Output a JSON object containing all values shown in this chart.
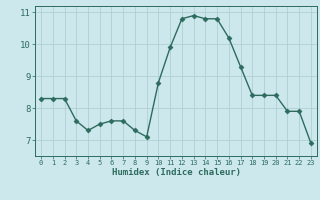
{
  "x": [
    0,
    1,
    2,
    3,
    4,
    5,
    6,
    7,
    8,
    9,
    10,
    11,
    12,
    13,
    14,
    15,
    16,
    17,
    18,
    19,
    20,
    21,
    22,
    23
  ],
  "y": [
    8.3,
    8.3,
    8.3,
    7.6,
    7.3,
    7.5,
    7.6,
    7.6,
    7.3,
    7.1,
    8.8,
    9.9,
    10.8,
    10.9,
    10.8,
    10.8,
    10.2,
    9.3,
    8.4,
    8.4,
    8.4,
    7.9,
    7.9,
    6.9
  ],
  "xlabel": "Humidex (Indice chaleur)",
  "ylim": [
    6.5,
    11.2
  ],
  "xlim": [
    -0.5,
    23.5
  ],
  "yticks": [
    7,
    8,
    9,
    10,
    11
  ],
  "xticks": [
    0,
    1,
    2,
    3,
    4,
    5,
    6,
    7,
    8,
    9,
    10,
    11,
    12,
    13,
    14,
    15,
    16,
    17,
    18,
    19,
    20,
    21,
    22,
    23
  ],
  "line_color": "#2d6b5e",
  "bg_color": "#cce8ec",
  "grid_color": "#afd0d4",
  "marker_size": 2.5,
  "line_width": 1.0,
  "tick_fontsize": 5.0,
  "xlabel_fontsize": 6.5,
  "ytick_fontsize": 6.5
}
